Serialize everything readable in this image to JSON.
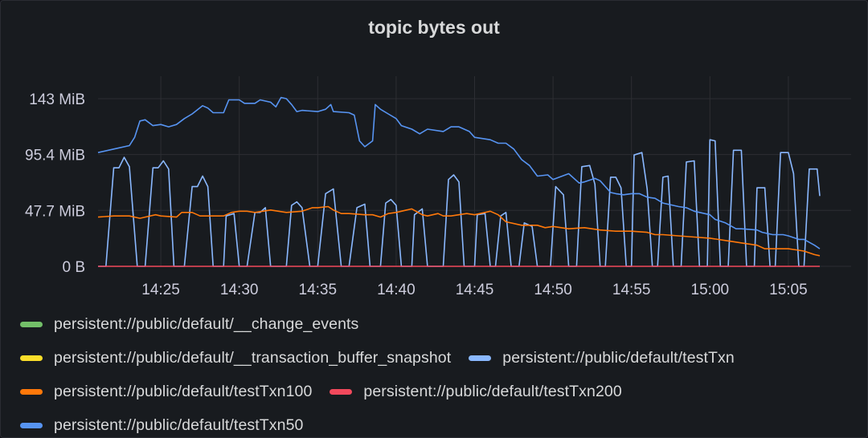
{
  "panel": {
    "title": "topic bytes out"
  },
  "chart_data": {
    "type": "line",
    "title": "topic bytes out",
    "y_unit": "MiB",
    "ylim": [
      0,
      143
    ],
    "yticks": [
      {
        "value": 0,
        "label": "0 B"
      },
      {
        "value": 47.7,
        "label": "47.7 MiB"
      },
      {
        "value": 95.4,
        "label": "95.4 MiB"
      },
      {
        "value": 143,
        "label": "143 MiB"
      }
    ],
    "xlim": [
      "14:21",
      "15:09"
    ],
    "xticks": [
      "14:25",
      "14:30",
      "14:35",
      "14:40",
      "14:45",
      "14:50",
      "14:55",
      "15:00",
      "15:05"
    ],
    "grid": true,
    "legend": "bottom",
    "series": [
      {
        "name": "persistent://public/default/__change_events",
        "color": "#73bf69",
        "points": []
      },
      {
        "name": "persistent://public/default/__transaction_buffer_snapshot",
        "color": "#fade2a",
        "points": []
      },
      {
        "name": "persistent://public/default/testTxn",
        "color": "#8ab8ff",
        "points": [
          [
            "14:21",
            0
          ],
          [
            "14:21:30",
            0
          ],
          [
            "14:22",
            84
          ],
          [
            "14:22:20",
            84
          ],
          [
            "14:22:40",
            93
          ],
          [
            "14:23",
            85
          ],
          [
            "14:23:30",
            0
          ],
          [
            "14:24",
            0
          ],
          [
            "14:24:30",
            84
          ],
          [
            "14:24:50",
            84
          ],
          [
            "14:25:10",
            90
          ],
          [
            "14:25:30",
            83
          ],
          [
            "14:25:50",
            0
          ],
          [
            "14:26:30",
            0
          ],
          [
            "14:27",
            68
          ],
          [
            "14:27:20",
            68
          ],
          [
            "14:27:40",
            77
          ],
          [
            "14:28",
            68
          ],
          [
            "14:28:20",
            0
          ],
          [
            "14:29",
            0
          ],
          [
            "14:29:10",
            43
          ],
          [
            "14:29:40",
            45
          ],
          [
            "14:30",
            0
          ],
          [
            "14:30:30",
            0
          ],
          [
            "14:31",
            46
          ],
          [
            "14:31:20",
            46
          ],
          [
            "14:31:40",
            50
          ],
          [
            "14:32",
            0
          ],
          [
            "14:33",
            0
          ],
          [
            "14:33:20",
            52
          ],
          [
            "14:33:40",
            55
          ],
          [
            "14:34",
            50
          ],
          [
            "14:34:30",
            0
          ],
          [
            "14:35",
            0
          ],
          [
            "14:35:30",
            62
          ],
          [
            "14:36",
            66
          ],
          [
            "14:36:30",
            0
          ],
          [
            "14:37",
            0
          ],
          [
            "14:37:30",
            50
          ],
          [
            "14:38",
            53
          ],
          [
            "14:38:20",
            0
          ],
          [
            "14:39",
            0
          ],
          [
            "14:39:20",
            54
          ],
          [
            "14:39:40",
            57
          ],
          [
            "14:40",
            52
          ],
          [
            "14:40:20",
            0
          ],
          [
            "14:41",
            0
          ],
          [
            "14:41:10",
            44
          ],
          [
            "14:41:40",
            49
          ],
          [
            "14:42",
            0
          ],
          [
            "14:43",
            0
          ],
          [
            "14:43:20",
            74
          ],
          [
            "14:43:40",
            78
          ],
          [
            "14:44",
            72
          ],
          [
            "14:44:20",
            0
          ],
          [
            "14:45",
            0
          ],
          [
            "14:45:10",
            44
          ],
          [
            "14:45:40",
            45
          ],
          [
            "14:46",
            0
          ],
          [
            "14:46:20",
            0
          ],
          [
            "14:46:40",
            43
          ],
          [
            "14:47",
            46
          ],
          [
            "14:47:20",
            0
          ],
          [
            "14:47:50",
            0
          ],
          [
            "14:48:10",
            37
          ],
          [
            "14:48:40",
            34
          ],
          [
            "14:49",
            0
          ],
          [
            "14:49:50",
            0
          ],
          [
            "14:50:10",
            68
          ],
          [
            "14:50:40",
            61
          ],
          [
            "14:51",
            0
          ],
          [
            "14:51:30",
            0
          ],
          [
            "14:51:50",
            85
          ],
          [
            "14:52:20",
            86
          ],
          [
            "14:52:40",
            70
          ],
          [
            "14:53",
            0
          ],
          [
            "14:53:20",
            0
          ],
          [
            "14:53:40",
            76
          ],
          [
            "14:54",
            76
          ],
          [
            "14:54:20",
            67
          ],
          [
            "14:54:40",
            0
          ],
          [
            "14:55",
            0
          ],
          [
            "14:55:10",
            95
          ],
          [
            "14:55:40",
            97
          ],
          [
            "14:56",
            66
          ],
          [
            "14:56:20",
            0
          ],
          [
            "14:56:40",
            0
          ],
          [
            "14:57",
            76
          ],
          [
            "14:57:20",
            77
          ],
          [
            "14:57:40",
            0
          ],
          [
            "14:58:10",
            0
          ],
          [
            "14:58:30",
            89
          ],
          [
            "14:59",
            90
          ],
          [
            "14:59:20",
            0
          ],
          [
            "14:59:50",
            0
          ],
          [
            "15:00",
            108
          ],
          [
            "15:00:20",
            107
          ],
          [
            "15:00:40",
            0
          ],
          [
            "15:01:10",
            0
          ],
          [
            "15:01:30",
            99
          ],
          [
            "15:02",
            99
          ],
          [
            "15:02:20",
            0
          ],
          [
            "15:02:50",
            0
          ],
          [
            "15:03",
            67
          ],
          [
            "15:03:30",
            67
          ],
          [
            "15:03:50",
            0
          ],
          [
            "15:04:10",
            0
          ],
          [
            "15:04:30",
            97
          ],
          [
            "15:05",
            97
          ],
          [
            "15:05:20",
            79
          ],
          [
            "15:05:40",
            0
          ],
          [
            "15:06",
            0
          ],
          [
            "15:06:20",
            83
          ],
          [
            "15:06:50",
            83
          ],
          [
            "15:07",
            60
          ]
        ]
      },
      {
        "name": "persistent://public/default/testTxn100",
        "color": "#ff780a",
        "points": [
          [
            "14:21",
            42
          ],
          [
            "14:22",
            43
          ],
          [
            "14:23",
            43
          ],
          [
            "14:23:40",
            41
          ],
          [
            "14:24",
            42
          ],
          [
            "14:24:40",
            44
          ],
          [
            "14:25",
            43
          ],
          [
            "14:26",
            42
          ],
          [
            "14:26:20",
            46
          ],
          [
            "14:27",
            46
          ],
          [
            "14:27:30",
            43
          ],
          [
            "14:28",
            43
          ],
          [
            "14:29",
            43
          ],
          [
            "14:29:30",
            46
          ],
          [
            "14:30",
            47
          ],
          [
            "14:30:30",
            47
          ],
          [
            "14:31",
            46
          ],
          [
            "14:32",
            48
          ],
          [
            "14:32:30",
            47
          ],
          [
            "14:33",
            46
          ],
          [
            "14:34",
            47
          ],
          [
            "14:34:40",
            50
          ],
          [
            "14:35",
            50
          ],
          [
            "14:35:40",
            51
          ],
          [
            "14:36",
            48
          ],
          [
            "14:36:30",
            45
          ],
          [
            "14:37",
            45
          ],
          [
            "14:38",
            44
          ],
          [
            "14:38:30",
            44
          ],
          [
            "14:39",
            42
          ],
          [
            "14:39:30",
            45
          ],
          [
            "14:40",
            46
          ],
          [
            "14:40:40",
            48
          ],
          [
            "14:41",
            49
          ],
          [
            "14:41:40",
            44
          ],
          [
            "14:42",
            43
          ],
          [
            "14:42:40",
            45
          ],
          [
            "14:43",
            43
          ],
          [
            "14:43:30",
            43
          ],
          [
            "14:44",
            44
          ],
          [
            "14:44:30",
            45
          ],
          [
            "14:45",
            44
          ],
          [
            "14:45:40",
            46
          ],
          [
            "14:46",
            47
          ],
          [
            "14:46:30",
            44
          ],
          [
            "14:47",
            38
          ],
          [
            "14:48",
            35
          ],
          [
            "14:49",
            35
          ],
          [
            "14:49:30",
            33
          ],
          [
            "14:50",
            34
          ],
          [
            "14:51",
            32
          ],
          [
            "14:52",
            33
          ],
          [
            "14:53",
            31
          ],
          [
            "14:54",
            30
          ],
          [
            "14:55",
            30
          ],
          [
            "14:56",
            29
          ],
          [
            "14:56:30",
            27
          ],
          [
            "14:57",
            27
          ],
          [
            "14:58",
            26
          ],
          [
            "14:59",
            25
          ],
          [
            "15:00",
            24
          ],
          [
            "15:01",
            22
          ],
          [
            "15:02",
            20
          ],
          [
            "15:03",
            18
          ],
          [
            "15:03:30",
            15
          ],
          [
            "15:04",
            15
          ],
          [
            "15:05",
            15
          ],
          [
            "15:05:30",
            14
          ],
          [
            "15:06",
            13
          ],
          [
            "15:06:40",
            10
          ],
          [
            "15:07",
            9
          ]
        ]
      },
      {
        "name": "persistent://public/default/testTxn200",
        "color": "#f2495c",
        "points": [
          [
            "14:21",
            0
          ],
          [
            "15:07",
            0
          ]
        ]
      },
      {
        "name": "persistent://public/default/testTxn50",
        "color": "#5794f2",
        "points": [
          [
            "14:21",
            97
          ],
          [
            "14:22",
            100
          ],
          [
            "14:23",
            103
          ],
          [
            "14:23:20",
            110
          ],
          [
            "14:23:40",
            124
          ],
          [
            "14:24",
            125
          ],
          [
            "14:24:30",
            120
          ],
          [
            "14:25",
            121
          ],
          [
            "14:25:30",
            119
          ],
          [
            "14:26",
            121
          ],
          [
            "14:26:30",
            126
          ],
          [
            "14:27",
            130
          ],
          [
            "14:27:40",
            137
          ],
          [
            "14:28",
            135
          ],
          [
            "14:28:20",
            131
          ],
          [
            "14:29",
            131
          ],
          [
            "14:29:20",
            142
          ],
          [
            "14:30",
            142
          ],
          [
            "14:30:20",
            139
          ],
          [
            "14:31",
            139
          ],
          [
            "14:31:20",
            142
          ],
          [
            "14:32",
            140
          ],
          [
            "14:32:20",
            136
          ],
          [
            "14:32:40",
            144
          ],
          [
            "14:33",
            143
          ],
          [
            "14:33:20",
            138
          ],
          [
            "14:33:40",
            132
          ],
          [
            "14:34",
            133
          ],
          [
            "14:35",
            132
          ],
          [
            "14:35:30",
            134
          ],
          [
            "14:35:50",
            138
          ],
          [
            "14:36",
            132
          ],
          [
            "14:37",
            131
          ],
          [
            "14:37:20",
            129
          ],
          [
            "14:37:40",
            107
          ],
          [
            "14:38",
            102
          ],
          [
            "14:38:30",
            107
          ],
          [
            "14:38:40",
            138
          ],
          [
            "14:39",
            134
          ],
          [
            "14:39:30",
            130
          ],
          [
            "14:40",
            126
          ],
          [
            "14:40:20",
            120
          ],
          [
            "14:41",
            117
          ],
          [
            "14:41:30",
            113
          ],
          [
            "14:42",
            117
          ],
          [
            "14:43",
            115
          ],
          [
            "14:43:30",
            119
          ],
          [
            "14:44",
            119
          ],
          [
            "14:44:40",
            115
          ],
          [
            "14:45",
            110
          ],
          [
            "14:46",
            108
          ],
          [
            "14:46:30",
            105
          ],
          [
            "14:47",
            105
          ],
          [
            "14:47:30",
            100
          ],
          [
            "14:48",
            91
          ],
          [
            "14:48:30",
            86
          ],
          [
            "14:49",
            77
          ],
          [
            "14:49:40",
            78
          ],
          [
            "14:50",
            74
          ],
          [
            "14:51",
            79
          ],
          [
            "14:51:40",
            71
          ],
          [
            "14:52",
            72
          ],
          [
            "14:52:40",
            75
          ],
          [
            "14:53",
            73
          ],
          [
            "14:53:40",
            63
          ],
          [
            "14:54",
            62
          ],
          [
            "14:54:30",
            61
          ],
          [
            "14:55",
            62
          ],
          [
            "14:55:30",
            62
          ],
          [
            "14:56",
            59
          ],
          [
            "14:56:30",
            58
          ],
          [
            "14:57",
            54
          ],
          [
            "14:58",
            51
          ],
          [
            "14:58:30",
            50
          ],
          [
            "14:59",
            47
          ],
          [
            "15:00",
            44
          ],
          [
            "15:00:20",
            40
          ],
          [
            "15:01",
            37
          ],
          [
            "15:01:40",
            32
          ],
          [
            "15:02",
            32
          ],
          [
            "15:03",
            31
          ],
          [
            "15:03:20",
            29
          ],
          [
            "15:04",
            27
          ],
          [
            "15:04:40",
            27
          ],
          [
            "15:05",
            26
          ],
          [
            "15:05:40",
            23
          ],
          [
            "15:06",
            23
          ],
          [
            "15:06:40",
            18
          ],
          [
            "15:07",
            15
          ]
        ]
      }
    ]
  },
  "legend": {
    "rows": [
      [
        0
      ],
      [
        1,
        2
      ],
      [
        3,
        4
      ],
      [
        5
      ]
    ]
  }
}
